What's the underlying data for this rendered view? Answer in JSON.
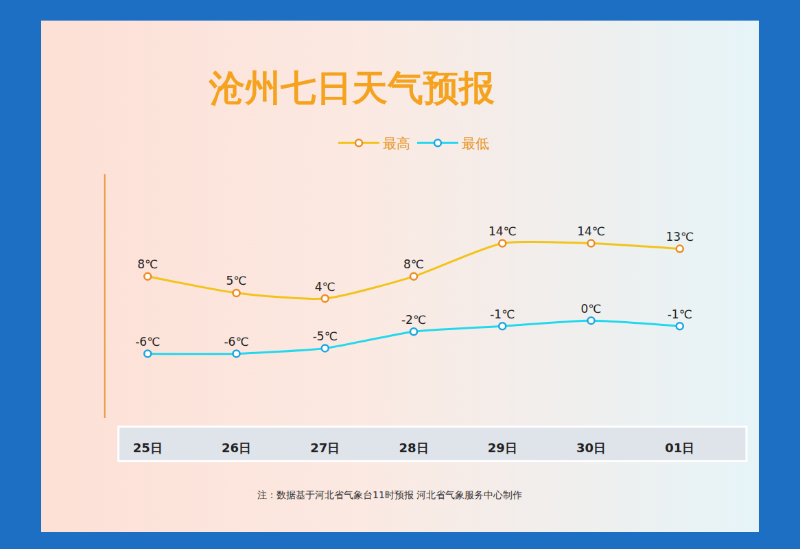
{
  "chart_data": {
    "type": "line",
    "title": "沧州七日天气预报",
    "categories": [
      "25日",
      "26日",
      "27日",
      "28日",
      "29日",
      "30日",
      "01日"
    ],
    "series": [
      {
        "name": "最高",
        "color": "#f2c318",
        "marker": "circle",
        "values": [
          8,
          5,
          4,
          8,
          14,
          14,
          13
        ],
        "value_labels": [
          "8℃",
          "5℃",
          "4℃",
          "8℃",
          "14℃",
          "14℃",
          "13℃"
        ]
      },
      {
        "name": "最低",
        "color": "#22d8ee",
        "marker": "circle",
        "values": [
          -6,
          -6,
          -5,
          -2,
          -1,
          0,
          -1
        ],
        "value_labels": [
          "-6℃",
          "-6℃",
          "-5℃",
          "-2℃",
          "-1℃",
          "0℃",
          "-1℃"
        ]
      }
    ],
    "ylim": [
      -19,
      27
    ],
    "yticks": [],
    "tick_labels": "x",
    "data_labels": true,
    "legend": "top",
    "annotations": [
      "注：数据基于河北省气象台11时预报 河北省气象服务中心制作"
    ]
  }
}
